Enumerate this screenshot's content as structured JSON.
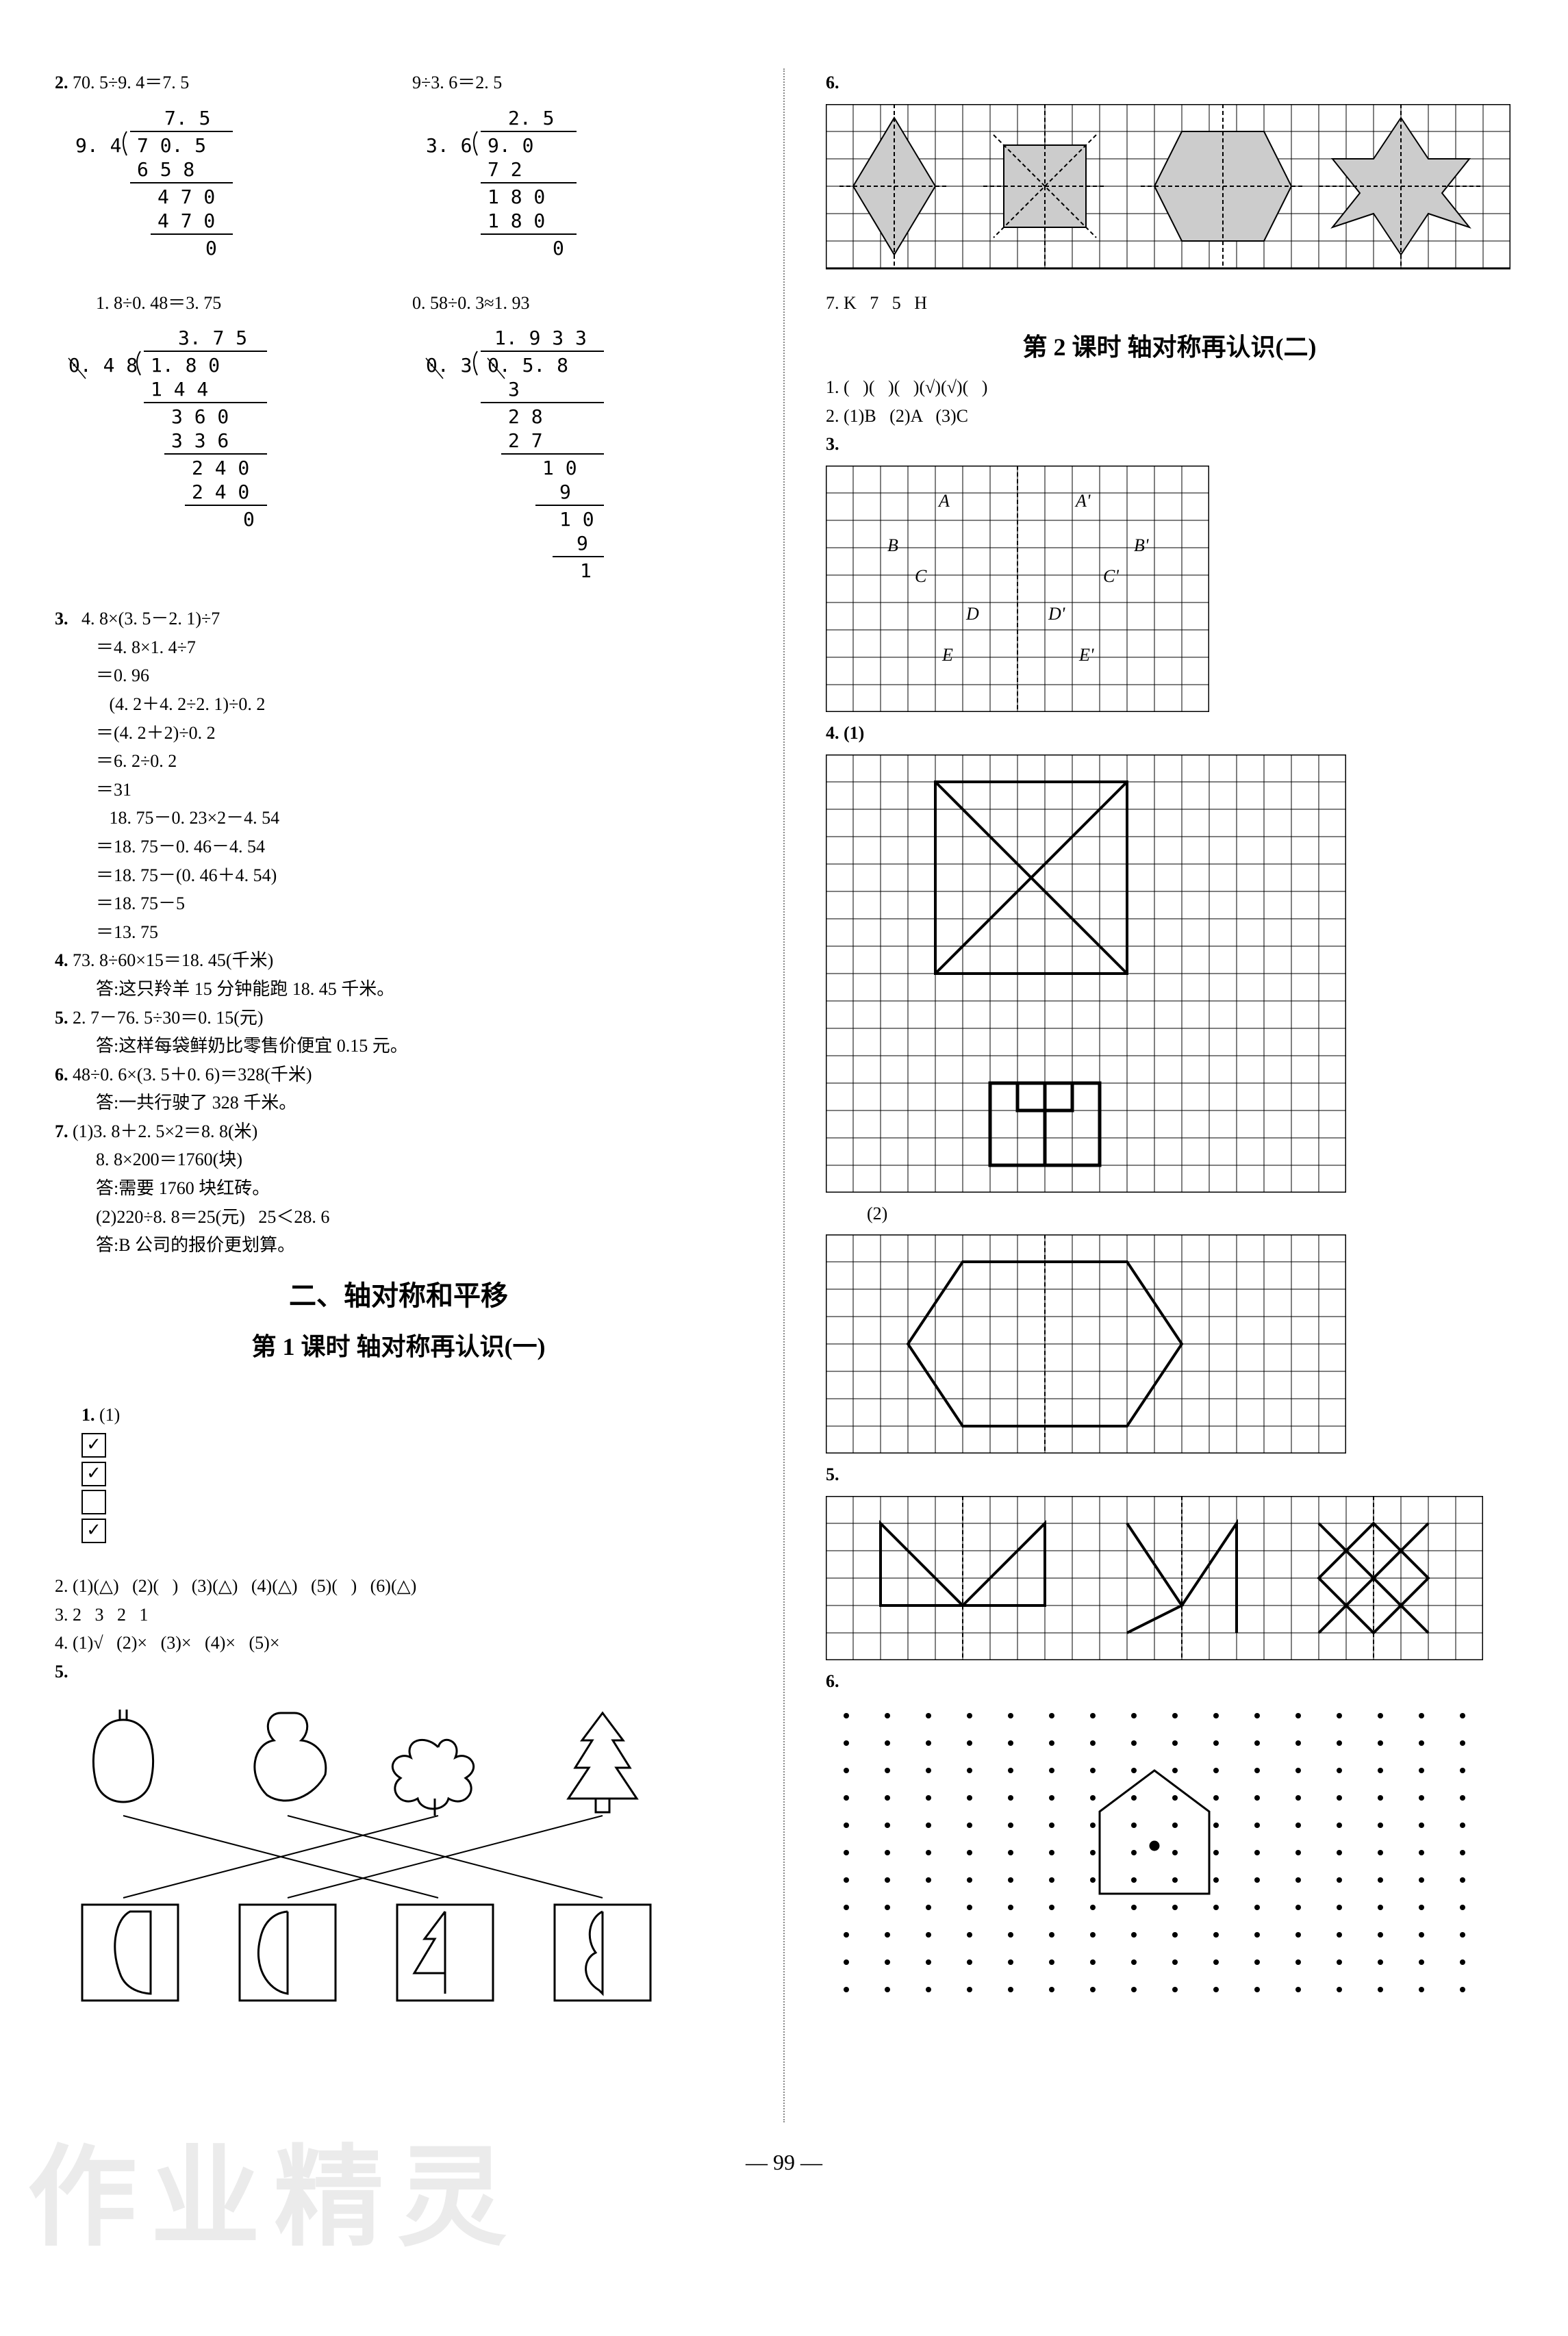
{
  "left": {
    "q2_header": "2.",
    "div1": {
      "expr": "70. 5÷9. 4＝7. 5",
      "quot": "7. 5",
      "divisor": "9. 4",
      "dividend": "7 0. 5",
      "steps": [
        "6 5 8",
        "4 7 0",
        "4 7 0",
        "0"
      ]
    },
    "div2": {
      "expr": "9÷3. 6＝2. 5",
      "quot": "2. 5",
      "divisor": "3. 6",
      "dividend": "9. 0",
      "steps": [
        "7 2",
        "1 8 0",
        "1 8 0",
        "0"
      ]
    },
    "div3": {
      "expr": "1. 8÷0. 48＝3. 75",
      "quot": "3. 7 5",
      "divisor": "0. 4 8",
      "dividend": "1. 8 0",
      "steps": [
        "1 4 4",
        "3 6 0",
        "3 3 6",
        "2 4 0",
        "2 4 0",
        "0"
      ]
    },
    "div4": {
      "expr": "0. 58÷0. 3≈1. 93",
      "quot": "1. 9 3 3",
      "divisor": "0. 3",
      "dividend": "0. 5. 8",
      "steps": [
        "3",
        "2 8",
        "2 7",
        "1 0",
        "9",
        "1 0",
        "9",
        "1"
      ]
    },
    "q3": {
      "header": "3.",
      "lines": [
        "   4. 8×(3. 5－2. 1)÷7",
        "＝4. 8×1. 4÷7",
        "＝0. 96",
        "   (4. 2＋4. 2÷2. 1)÷0. 2",
        "＝(4. 2＋2)÷0. 2",
        "＝6. 2÷0. 2",
        "＝31",
        "   18. 75－0. 23×2－4. 54",
        "＝18. 75－0. 46－4. 54",
        "＝18. 75－(0. 46＋4. 54)",
        "＝18. 75－5",
        "＝13. 75"
      ]
    },
    "q4": {
      "header": "4.",
      "l1": "73. 8÷60×15＝18. 45(千米)",
      "l2": "答:这只羚羊 15 分钟能跑 18. 45 千米。"
    },
    "q5": {
      "header": "5.",
      "l1": "2. 7－76. 5÷30＝0. 15(元)",
      "l2": "答:这样每袋鲜奶比零售价便宜 0.15 元。"
    },
    "q6": {
      "header": "6.",
      "l1": "48÷0. 6×(3. 5＋0. 6)＝328(千米)",
      "l2": "答:一共行驶了 328 千米。"
    },
    "q7": {
      "header": "7.",
      "l1": "(1)3. 8＋2. 5×2＝8. 8(米)",
      "l2": "8. 8×200＝1760(块)",
      "l3": "答:需要 1760 块红砖。",
      "l4": "(2)220÷8. 8＝25(元)   25＜28. 6",
      "l5": "答:B 公司的报价更划算。"
    },
    "section2_title": "二、轴对称和平移",
    "lesson1_title": "第 1 课时   轴对称再认识(一)",
    "l1_q1": {
      "header": "1.",
      "text": "(1)",
      "boxes": [
        "✓",
        "✓",
        " ",
        "✓"
      ]
    },
    "l1_q2": "2. (1)(△)   (2)(   )   (3)(△)   (4)(△)   (5)(   )   (6)(△)",
    "l1_q3": "3. 2   3   2   1",
    "l1_q4": "4. (1)√   (2)×   (3)×   (4)×   (5)×",
    "l1_q5": "5."
  },
  "right": {
    "q6": "6.",
    "q7": "7. K   7   5   H",
    "lesson2_title": "第 2 课时   轴对称再认识(二)",
    "l2_q1": "1. (   )(   )(   )(√)(√)(   )",
    "l2_q2": "2. (1)B   (2)A   (3)C",
    "l2_q3": "3.",
    "grid3_labels": {
      "A": "A",
      "Ap": "A'",
      "B": "B",
      "Bp": "B'",
      "C": "C",
      "Cp": "C'",
      "D": "D",
      "Dp": "D'",
      "E": "E",
      "Ep": "E'"
    },
    "l2_q4": "4. (1)",
    "l2_q4_2": "(2)",
    "l2_q5": "5.",
    "l2_q6": "6."
  },
  "page_num": "99",
  "watermark": "作业精灵",
  "colors": {
    "grid": "#000000",
    "shade": "#cccccc"
  },
  "grid": {
    "cell": 40
  }
}
